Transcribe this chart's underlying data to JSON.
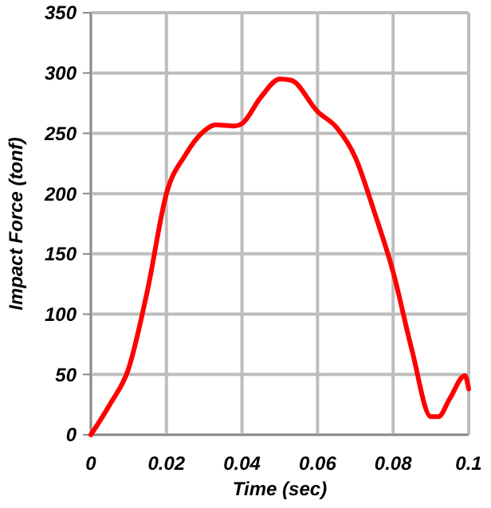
{
  "chart_data": {
    "type": "line",
    "xlabel": "Time (sec)",
    "ylabel": "Impact Force (tonf)",
    "x": [
      0,
      0.005,
      0.01,
      0.015,
      0.02,
      0.025,
      0.03,
      0.033,
      0.038,
      0.04,
      0.045,
      0.05,
      0.053,
      0.06,
      0.065,
      0.07,
      0.075,
      0.08,
      0.085,
      0.09,
      0.092,
      0.095,
      0.099,
      0.1
    ],
    "series": [
      {
        "color": "#ff0000",
        "values": [
          0,
          25,
          55,
          120,
          200,
          232,
          252,
          257,
          256,
          258,
          280,
          295,
          294,
          268,
          255,
          230,
          185,
          135,
          70,
          15,
          15,
          30,
          49,
          38
        ]
      }
    ],
    "xlim": [
      0,
      0.1
    ],
    "xticks": [
      0,
      0.02,
      0.04,
      0.06,
      0.08,
      0.1
    ],
    "ylim": [
      0,
      350
    ],
    "yticks": [
      0,
      50,
      100,
      150,
      200,
      250,
      300,
      350
    ],
    "grid": true,
    "marker": "none",
    "line_style": "solid"
  }
}
